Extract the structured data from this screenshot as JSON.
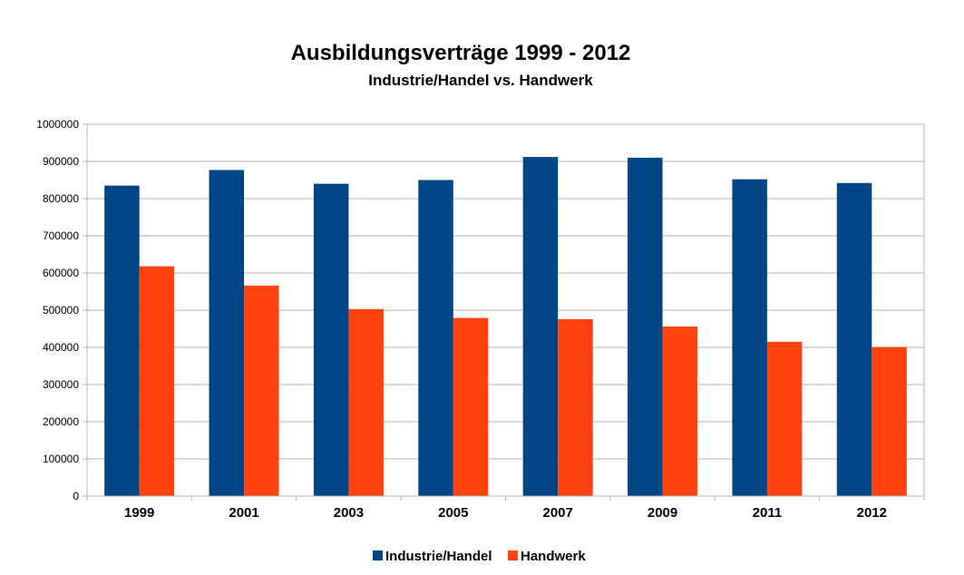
{
  "chart_data": {
    "type": "bar",
    "title": "Ausbildungsverträge 1999 - 2012",
    "subtitle": "Industrie/Handel vs. Handwerk",
    "xlabel": "",
    "ylabel": "",
    "categories": [
      "1999",
      "2001",
      "2003",
      "2005",
      "2007",
      "2009",
      "2011",
      "2012"
    ],
    "series": [
      {
        "name": "Industrie/Handel",
        "color": "#004586",
        "values": [
          835000,
          877000,
          840000,
          850000,
          912000,
          910000,
          852000,
          842000
        ]
      },
      {
        "name": "Handwerk",
        "color": "#ff420e",
        "values": [
          618000,
          566000,
          503000,
          479000,
          476000,
          456000,
          415000,
          401000
        ]
      }
    ],
    "ylim": [
      0,
      1000000
    ],
    "yticks": [
      "0",
      "100000",
      "200000",
      "300000",
      "400000",
      "500000",
      "600000",
      "700000",
      "800000",
      "900000",
      "1000000"
    ],
    "grid": true,
    "legend_position": "bottom"
  }
}
